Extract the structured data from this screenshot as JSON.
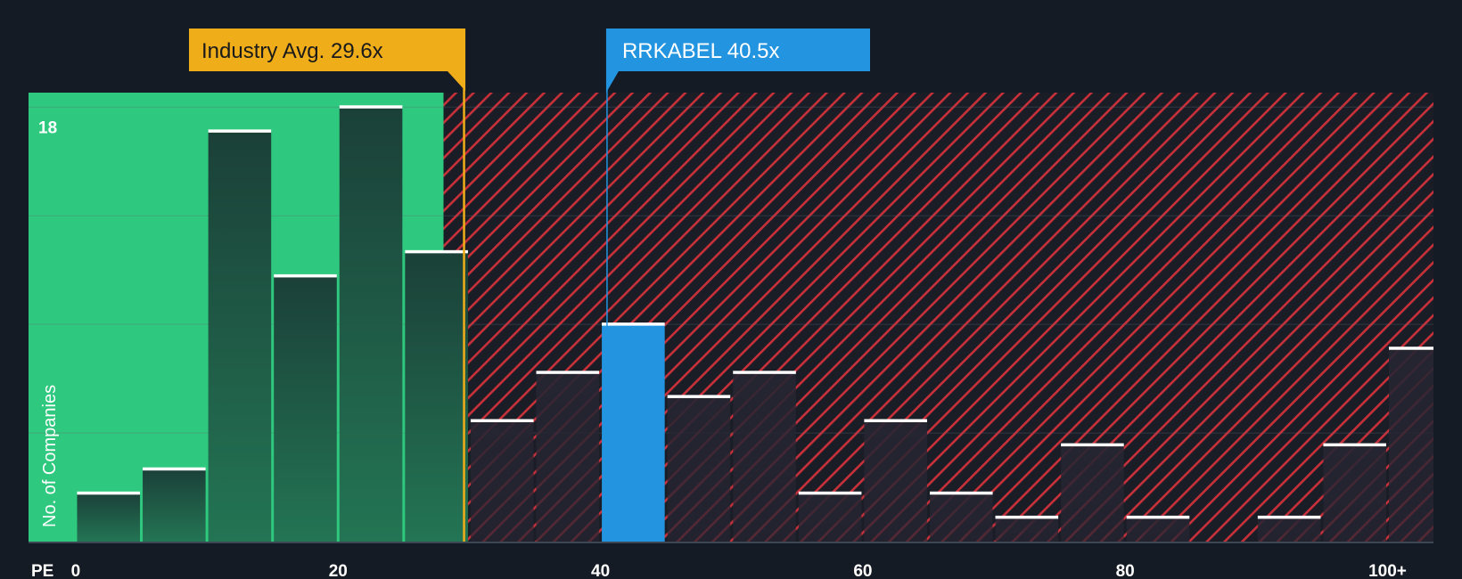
{
  "chart_data": {
    "type": "bar",
    "title": "",
    "xlabel": "PE",
    "ylabel": "No. of Companies",
    "y_top_tick_label": "18",
    "ylim": [
      0,
      18.6
    ],
    "xlim": [
      -3.6,
      103.5
    ],
    "x_ticks": [
      0,
      20,
      40,
      60,
      80,
      100
    ],
    "x_tick_labels": [
      "0",
      "20",
      "40",
      "60",
      "80",
      "100+"
    ],
    "bin_width": 5,
    "bins": [
      {
        "x0": 0,
        "x1": 5,
        "value": 2
      },
      {
        "x0": 5,
        "x1": 10,
        "value": 3
      },
      {
        "x0": 10,
        "x1": 15,
        "value": 17
      },
      {
        "x0": 15,
        "x1": 20,
        "value": 11
      },
      {
        "x0": 20,
        "x1": 25,
        "value": 18
      },
      {
        "x0": 25,
        "x1": 30,
        "value": 12
      },
      {
        "x0": 30,
        "x1": 35,
        "value": 5
      },
      {
        "x0": 35,
        "x1": 40,
        "value": 7
      },
      {
        "x0": 40,
        "x1": 45,
        "value": 9
      },
      {
        "x0": 45,
        "x1": 50,
        "value": 6
      },
      {
        "x0": 50,
        "x1": 55,
        "value": 7
      },
      {
        "x0": 55,
        "x1": 60,
        "value": 2
      },
      {
        "x0": 60,
        "x1": 65,
        "value": 5
      },
      {
        "x0": 65,
        "x1": 70,
        "value": 2
      },
      {
        "x0": 70,
        "x1": 75,
        "value": 1
      },
      {
        "x0": 75,
        "x1": 80,
        "value": 4
      },
      {
        "x0": 80,
        "x1": 85,
        "value": 1
      },
      {
        "x0": 85,
        "x1": 90,
        "value": 0
      },
      {
        "x0": 90,
        "x1": 95,
        "value": 1
      },
      {
        "x0": 95,
        "x1": 100,
        "value": 4
      },
      {
        "x0": 100,
        "x1": 105,
        "value": 8
      }
    ],
    "highlight_bin_index": 8,
    "industry_avg": {
      "value": 29.6,
      "label": "Industry Avg. 29.6x"
    },
    "company": {
      "name": "RRKABEL",
      "value": 40.5,
      "label": "RRKABEL 40.5x"
    },
    "colors": {
      "background": "#151b24",
      "undervalued_zone": "#2ec97e",
      "overvalued_zone": "#e0353d",
      "bar_dark": "#1c4a3c",
      "bar_overvalued": "#262532",
      "bar_highlight": "#2394e0",
      "bar_cap": "#ffffff",
      "industry_line": "#f0ad1a",
      "company_line": "#2394e0",
      "axis_text": "#ffffff",
      "grid": "#5d6b78"
    }
  }
}
